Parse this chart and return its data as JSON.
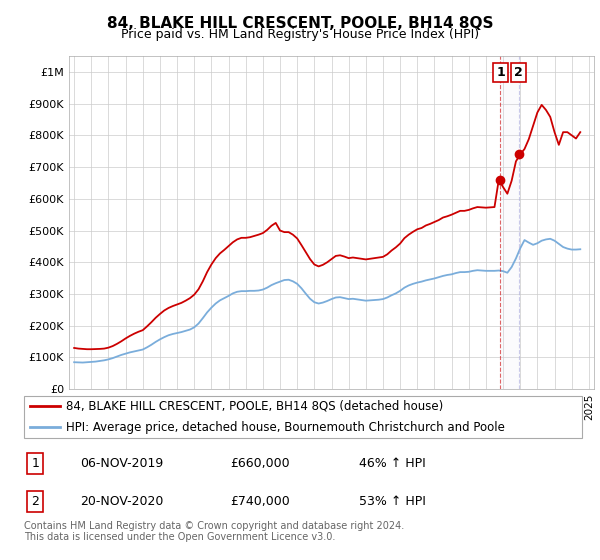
{
  "title": "84, BLAKE HILL CRESCENT, POOLE, BH14 8QS",
  "subtitle": "Price paid vs. HM Land Registry's House Price Index (HPI)",
  "ylabel_ticks": [
    "£0",
    "£100K",
    "£200K",
    "£300K",
    "£400K",
    "£500K",
    "£600K",
    "£700K",
    "£800K",
    "£900K",
    "£1M"
  ],
  "ytick_values": [
    0,
    100000,
    200000,
    300000,
    400000,
    500000,
    600000,
    700000,
    800000,
    900000,
    1000000
  ],
  "ylim": [
    0,
    1050000
  ],
  "xlim_start": 1994.7,
  "xlim_end": 2025.3,
  "hpi_color": "#7aaddb",
  "price_color": "#cc0000",
  "shade_color": "#e8e8f8",
  "marker1_x": 2019.85,
  "marker1_y": 660000,
  "marker2_x": 2020.9,
  "marker2_y": 740000,
  "legend_line1": "84, BLAKE HILL CRESCENT, POOLE, BH14 8QS (detached house)",
  "legend_line2": "HPI: Average price, detached house, Bournemouth Christchurch and Poole",
  "transaction1_date": "06-NOV-2019",
  "transaction1_price": "£660,000",
  "transaction1_hpi": "46% ↑ HPI",
  "transaction2_date": "20-NOV-2020",
  "transaction2_price": "£740,000",
  "transaction2_hpi": "53% ↑ HPI",
  "footer": "Contains HM Land Registry data © Crown copyright and database right 2024.\nThis data is licensed under the Open Government Licence v3.0.",
  "hpi_data_x": [
    1995.0,
    1995.25,
    1995.5,
    1995.75,
    1996.0,
    1996.25,
    1996.5,
    1996.75,
    1997.0,
    1997.25,
    1997.5,
    1997.75,
    1998.0,
    1998.25,
    1998.5,
    1998.75,
    1999.0,
    1999.25,
    1999.5,
    1999.75,
    2000.0,
    2000.25,
    2000.5,
    2000.75,
    2001.0,
    2001.25,
    2001.5,
    2001.75,
    2002.0,
    2002.25,
    2002.5,
    2002.75,
    2003.0,
    2003.25,
    2003.5,
    2003.75,
    2004.0,
    2004.25,
    2004.5,
    2004.75,
    2005.0,
    2005.25,
    2005.5,
    2005.75,
    2006.0,
    2006.25,
    2006.5,
    2006.75,
    2007.0,
    2007.25,
    2007.5,
    2007.75,
    2008.0,
    2008.25,
    2008.5,
    2008.75,
    2009.0,
    2009.25,
    2009.5,
    2009.75,
    2010.0,
    2010.25,
    2010.5,
    2010.75,
    2011.0,
    2011.25,
    2011.5,
    2011.75,
    2012.0,
    2012.25,
    2012.5,
    2012.75,
    2013.0,
    2013.25,
    2013.5,
    2013.75,
    2014.0,
    2014.25,
    2014.5,
    2014.75,
    2015.0,
    2015.25,
    2015.5,
    2015.75,
    2016.0,
    2016.25,
    2016.5,
    2016.75,
    2017.0,
    2017.25,
    2017.5,
    2017.75,
    2018.0,
    2018.25,
    2018.5,
    2018.75,
    2019.0,
    2019.25,
    2019.5,
    2019.75,
    2020.0,
    2020.25,
    2020.5,
    2020.75,
    2021.0,
    2021.25,
    2021.5,
    2021.75,
    2022.0,
    2022.25,
    2022.5,
    2022.75,
    2023.0,
    2023.25,
    2023.5,
    2023.75,
    2024.0,
    2024.25,
    2024.5
  ],
  "hpi_data_y": [
    85000,
    84500,
    84000,
    85000,
    86000,
    87000,
    89000,
    91000,
    94000,
    98000,
    103000,
    108000,
    112000,
    116000,
    119000,
    122000,
    125000,
    132000,
    140000,
    149000,
    157000,
    164000,
    170000,
    174000,
    177000,
    180000,
    184000,
    188000,
    195000,
    207000,
    224000,
    242000,
    257000,
    270000,
    280000,
    287000,
    294000,
    302000,
    307000,
    309000,
    309000,
    310000,
    310000,
    311000,
    314000,
    320000,
    328000,
    334000,
    339000,
    344000,
    345000,
    340000,
    332000,
    318000,
    301000,
    285000,
    274000,
    270000,
    273000,
    278000,
    284000,
    289000,
    290000,
    287000,
    284000,
    285000,
    283000,
    281000,
    279000,
    280000,
    281000,
    282000,
    284000,
    289000,
    296000,
    302000,
    310000,
    320000,
    327000,
    332000,
    336000,
    339000,
    343000,
    346000,
    349000,
    353000,
    357000,
    360000,
    362000,
    366000,
    369000,
    369000,
    370000,
    373000,
    375000,
    374000,
    373000,
    373000,
    373000,
    374000,
    372000,
    367000,
    385000,
    412000,
    444000,
    470000,
    462000,
    455000,
    460000,
    468000,
    472000,
    474000,
    468000,
    458000,
    448000,
    443000,
    440000,
    440000,
    441000
  ],
  "price_data_x": [
    1995.0,
    1995.25,
    1995.5,
    1995.75,
    1996.0,
    1996.25,
    1996.5,
    1996.75,
    1997.0,
    1997.25,
    1997.5,
    1997.75,
    1998.0,
    1998.25,
    1998.5,
    1998.75,
    1999.0,
    1999.25,
    1999.5,
    1999.75,
    2000.0,
    2000.25,
    2000.5,
    2000.75,
    2001.0,
    2001.25,
    2001.5,
    2001.75,
    2002.0,
    2002.25,
    2002.5,
    2002.75,
    2003.0,
    2003.25,
    2003.5,
    2003.75,
    2004.0,
    2004.25,
    2004.5,
    2004.75,
    2005.0,
    2005.25,
    2005.5,
    2005.75,
    2006.0,
    2006.25,
    2006.5,
    2006.75,
    2007.0,
    2007.25,
    2007.5,
    2007.75,
    2008.0,
    2008.25,
    2008.5,
    2008.75,
    2009.0,
    2009.25,
    2009.5,
    2009.75,
    2010.0,
    2010.25,
    2010.5,
    2010.75,
    2011.0,
    2011.25,
    2011.5,
    2011.75,
    2012.0,
    2012.25,
    2012.5,
    2012.75,
    2013.0,
    2013.25,
    2013.5,
    2013.75,
    2014.0,
    2014.25,
    2014.5,
    2014.75,
    2015.0,
    2015.25,
    2015.5,
    2015.75,
    2016.0,
    2016.25,
    2016.5,
    2016.75,
    2017.0,
    2017.25,
    2017.5,
    2017.75,
    2018.0,
    2018.25,
    2018.5,
    2018.75,
    2019.0,
    2019.25,
    2019.5,
    2019.75,
    2020.0,
    2020.25,
    2020.5,
    2020.75,
    2021.0,
    2021.25,
    2021.5,
    2021.75,
    2022.0,
    2022.25,
    2022.5,
    2022.75,
    2023.0,
    2023.25,
    2023.5,
    2023.75,
    2024.0,
    2024.25,
    2024.5
  ],
  "price_data_y": [
    130000,
    128000,
    127000,
    126000,
    126000,
    126500,
    127000,
    128000,
    131000,
    136000,
    143000,
    151000,
    160000,
    168000,
    175000,
    181000,
    186000,
    198000,
    211000,
    225000,
    237000,
    248000,
    256000,
    262000,
    267000,
    272000,
    279000,
    287000,
    298000,
    315000,
    340000,
    369000,
    393000,
    413000,
    428000,
    439000,
    451000,
    463000,
    472000,
    477000,
    477000,
    479000,
    483000,
    487000,
    492000,
    502000,
    515000,
    524000,
    500000,
    495000,
    495000,
    487000,
    475000,
    454000,
    432000,
    410000,
    393000,
    387000,
    392000,
    400000,
    410000,
    420000,
    422000,
    418000,
    413000,
    415000,
    413000,
    411000,
    409000,
    411000,
    413000,
    415000,
    417000,
    425000,
    437000,
    447000,
    459000,
    476000,
    487000,
    496000,
    504000,
    508000,
    516000,
    521000,
    527000,
    533000,
    541000,
    545000,
    550000,
    556000,
    562000,
    562000,
    565000,
    570000,
    574000,
    573000,
    572000,
    573000,
    574000,
    660000,
    637000,
    616000,
    657000,
    718000,
    740000,
    757000,
    788000,
    830000,
    872000,
    896000,
    880000,
    858000,
    810000,
    770000,
    810000,
    810000,
    800000,
    790000,
    810000
  ]
}
